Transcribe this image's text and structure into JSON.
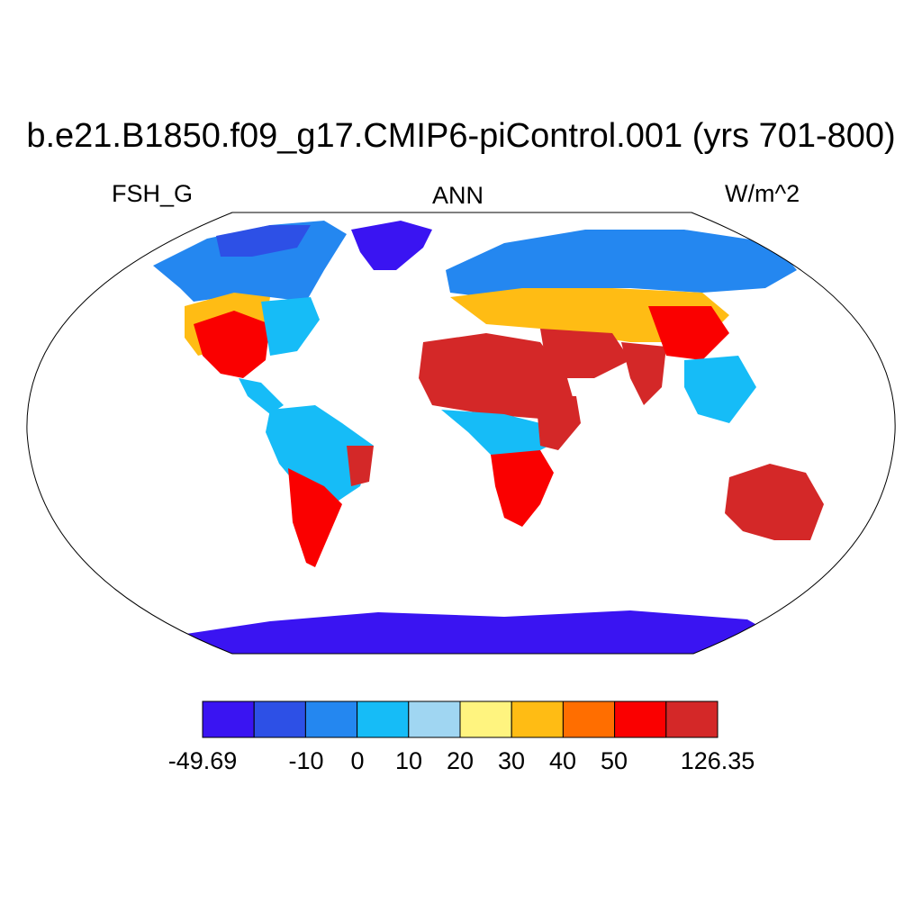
{
  "title": "b.e21.B1850.f09_g17.CMIP6-piControl.001 (yrs 701-800)",
  "left_label": "FSH_G",
  "center_label": "ANN",
  "right_label": "W/m^2",
  "colorbar": {
    "colors": [
      "#3a14f2",
      "#2d50e6",
      "#2487f0",
      "#16bcf7",
      "#a0d6f2",
      "#fff47f",
      "#ffbc14",
      "#ff6e00",
      "#fa0000",
      "#d42828"
    ],
    "labels": [
      "-49.69",
      "-10",
      "0",
      "10",
      "20",
      "30",
      "40",
      "50",
      "126.35"
    ]
  }
}
